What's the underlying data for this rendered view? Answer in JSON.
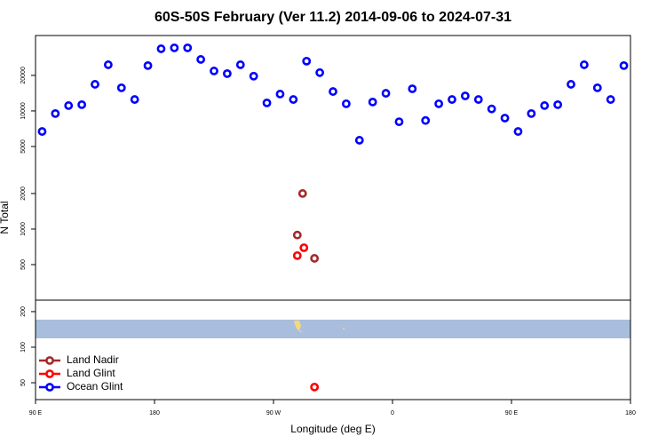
{
  "chart_data": {
    "type": "scatter",
    "title": "60S-50S February (Ver 11.2)   2014-09-06 to 2024-07-31",
    "x_label": "Longitude (deg E)",
    "y_label": "N Total",
    "xlim": [
      90,
      540
    ],
    "xticks": [
      {
        "value": 90,
        "label": "90 E"
      },
      {
        "value": 180,
        "label": "180"
      },
      {
        "value": 270,
        "label": "90 W"
      },
      {
        "value": 360,
        "label": "0"
      },
      {
        "value": 450,
        "label": "90 E"
      },
      {
        "value": 540,
        "label": "180"
      }
    ],
    "ylim": [
      36,
      43500
    ],
    "y_log": true,
    "yticks": [
      50,
      100,
      200,
      500,
      1000,
      2000,
      5000,
      10000,
      20000
    ],
    "legend_loc": "lower left",
    "series": [
      {
        "name": "Land Nadir",
        "color": "#a52a2a",
        "x": [
          292,
          288,
          301
        ],
        "values": [
          2000,
          890,
          565
        ]
      },
      {
        "name": "Land Glint",
        "color": "#ff0000",
        "x": [
          293,
          288,
          301
        ],
        "values": [
          695,
          596,
          46
        ]
      },
      {
        "name": "Ocean Glint",
        "color": "#0000ff",
        "x": [
          95,
          105,
          115,
          125,
          135,
          145,
          155,
          165,
          175,
          185,
          195,
          205,
          215,
          225,
          235,
          245,
          255,
          265,
          275,
          285,
          295,
          305,
          315,
          325,
          335,
          345,
          355,
          365,
          375,
          385,
          395,
          405,
          415,
          425,
          435,
          445,
          455,
          465,
          475,
          485,
          495,
          505,
          515,
          525,
          535
        ],
        "values": [
          6700,
          9500,
          11100,
          11300,
          16800,
          24600,
          15700,
          12500,
          24200,
          33600,
          34200,
          34200,
          27300,
          21800,
          20700,
          24600,
          19700,
          11700,
          13900,
          12500,
          26400,
          21100,
          14600,
          11500,
          5650,
          11900,
          14100,
          8100,
          15400,
          8300,
          11500,
          12500,
          13400,
          12500,
          10400,
          8700,
          6700,
          9500,
          11100,
          11300,
          16800,
          24600,
          15700,
          12500,
          24200
        ]
      }
    ]
  }
}
